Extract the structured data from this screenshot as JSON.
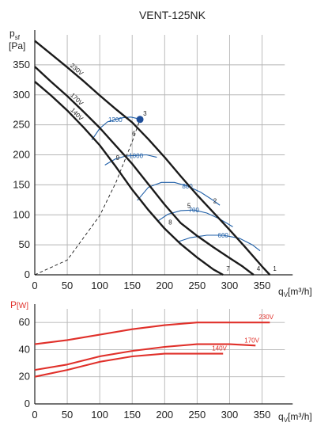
{
  "chart_data": [
    {
      "id": "pressure",
      "type": "line",
      "title": "VENT-125NK",
      "ylabel_main": "p",
      "ylabel_sub": "sf",
      "ylabel_unit": "[Pa]",
      "xlabel_main": "q",
      "xlabel_sub": "V",
      "xlabel_unit": "[m³/h]",
      "xlim": [
        0,
        385
      ],
      "ylim": [
        0,
        400
      ],
      "xticks": [
        "0",
        "50",
        "100",
        "150",
        "200",
        "250",
        "300",
        "350"
      ],
      "yticks": [
        "0",
        "50",
        "100",
        "150",
        "200",
        "250",
        "300",
        "350"
      ],
      "grid": true,
      "colors": {
        "curve": "#1a1a1a",
        "rpm": "#1f5fa8",
        "point": "#1f4e99",
        "grid": "#b5b5b5"
      },
      "series": [
        {
          "name": "230V",
          "x": [
            0,
            25,
            50,
            75,
            100,
            125,
            150,
            175,
            200,
            225,
            250,
            275,
            300,
            325,
            350,
            362
          ],
          "y": [
            390,
            368,
            346,
            323,
            299,
            276,
            254,
            226,
            196,
            164,
            133,
            104,
            75,
            45,
            14,
            0
          ]
        },
        {
          "name": "170V",
          "x": [
            0,
            25,
            50,
            75,
            100,
            125,
            150,
            175,
            200,
            225,
            250,
            275,
            300,
            320,
            337
          ],
          "y": [
            347,
            322,
            298,
            272,
            245,
            215,
            185,
            151,
            117,
            86,
            65,
            46,
            28,
            14,
            0
          ]
        },
        {
          "name": "140V",
          "x": [
            0,
            25,
            50,
            75,
            100,
            125,
            150,
            175,
            200,
            225,
            250,
            275,
            290
          ],
          "y": [
            322,
            299,
            274,
            246,
            216,
            180,
            142,
            108,
            77,
            51,
            29,
            9,
            0
          ]
        }
      ],
      "rpm_lines": [
        {
          "label": "1200",
          "x": [
            88,
            100,
            112,
            124,
            136,
            148,
            160
          ],
          "y": [
            225,
            244,
            255,
            259,
            262,
            263,
            260
          ]
        },
        {
          "label": "1000",
          "x": [
            108,
            124,
            140,
            156,
            172,
            188
          ],
          "y": [
            183,
            193,
            198,
            199,
            200,
            196
          ]
        },
        {
          "label": "800",
          "x": [
            158,
            175,
            195,
            215,
            235,
            255,
            275,
            285
          ],
          "y": [
            124,
            146,
            154,
            154,
            148,
            138,
            124,
            116
          ]
        },
        {
          "label": "700",
          "x": [
            190,
            205,
            225,
            245,
            265,
            285,
            305
          ],
          "y": [
            90,
            101,
            107,
            108,
            103,
            93,
            80
          ]
        },
        {
          "label": "600",
          "x": [
            220,
            240,
            265,
            290,
            315,
            335,
            347
          ],
          "y": [
            55,
            62,
            66,
            66,
            61,
            50,
            40
          ]
        }
      ],
      "duct_line_x": [
        0,
        50,
        100,
        125,
        150,
        162
      ],
      "duct_line_k": 0.00986,
      "points": [
        {
          "label": "1",
          "x": 362,
          "y": 0
        },
        {
          "label": "2",
          "x": 270,
          "y": 113
        },
        {
          "label": "3",
          "x": 162,
          "y": 259
        },
        {
          "label": "4",
          "x": 337,
          "y": 0
        },
        {
          "label": "5",
          "x": 230,
          "y": 105
        },
        {
          "label": "6",
          "x": 145,
          "y": 225
        },
        {
          "label": "7",
          "x": 290,
          "y": 0
        },
        {
          "label": "8",
          "x": 201,
          "y": 77
        },
        {
          "label": "9",
          "x": 120,
          "y": 185
        }
      ]
    },
    {
      "id": "power",
      "type": "line",
      "ylabel_main": "P",
      "ylabel_unit": "[W]",
      "xlabel_main": "q",
      "xlabel_sub": "V",
      "xlabel_unit": "[m³/h]",
      "xlim": [
        0,
        385
      ],
      "ylim": [
        0,
        70
      ],
      "xticks": [
        "0",
        "50",
        "100",
        "150",
        "200",
        "250",
        "300",
        "350"
      ],
      "yticks": [
        "0",
        "20",
        "40",
        "60"
      ],
      "grid": true,
      "colors": {
        "curve": "#e0302a",
        "grid": "#b5b5b5"
      },
      "series": [
        {
          "name": "230V",
          "x": [
            0,
            50,
            100,
            150,
            200,
            250,
            300,
            362
          ],
          "y": [
            44,
            47,
            51,
            55,
            58,
            60,
            60,
            60
          ]
        },
        {
          "name": "170V",
          "x": [
            0,
            50,
            100,
            150,
            200,
            250,
            300,
            340
          ],
          "y": [
            25,
            29,
            35,
            39,
            42,
            44,
            44,
            43
          ]
        },
        {
          "name": "140V",
          "x": [
            0,
            50,
            100,
            150,
            200,
            250,
            290
          ],
          "y": [
            20,
            25,
            31,
            35,
            37,
            37,
            37
          ]
        }
      ]
    }
  ]
}
